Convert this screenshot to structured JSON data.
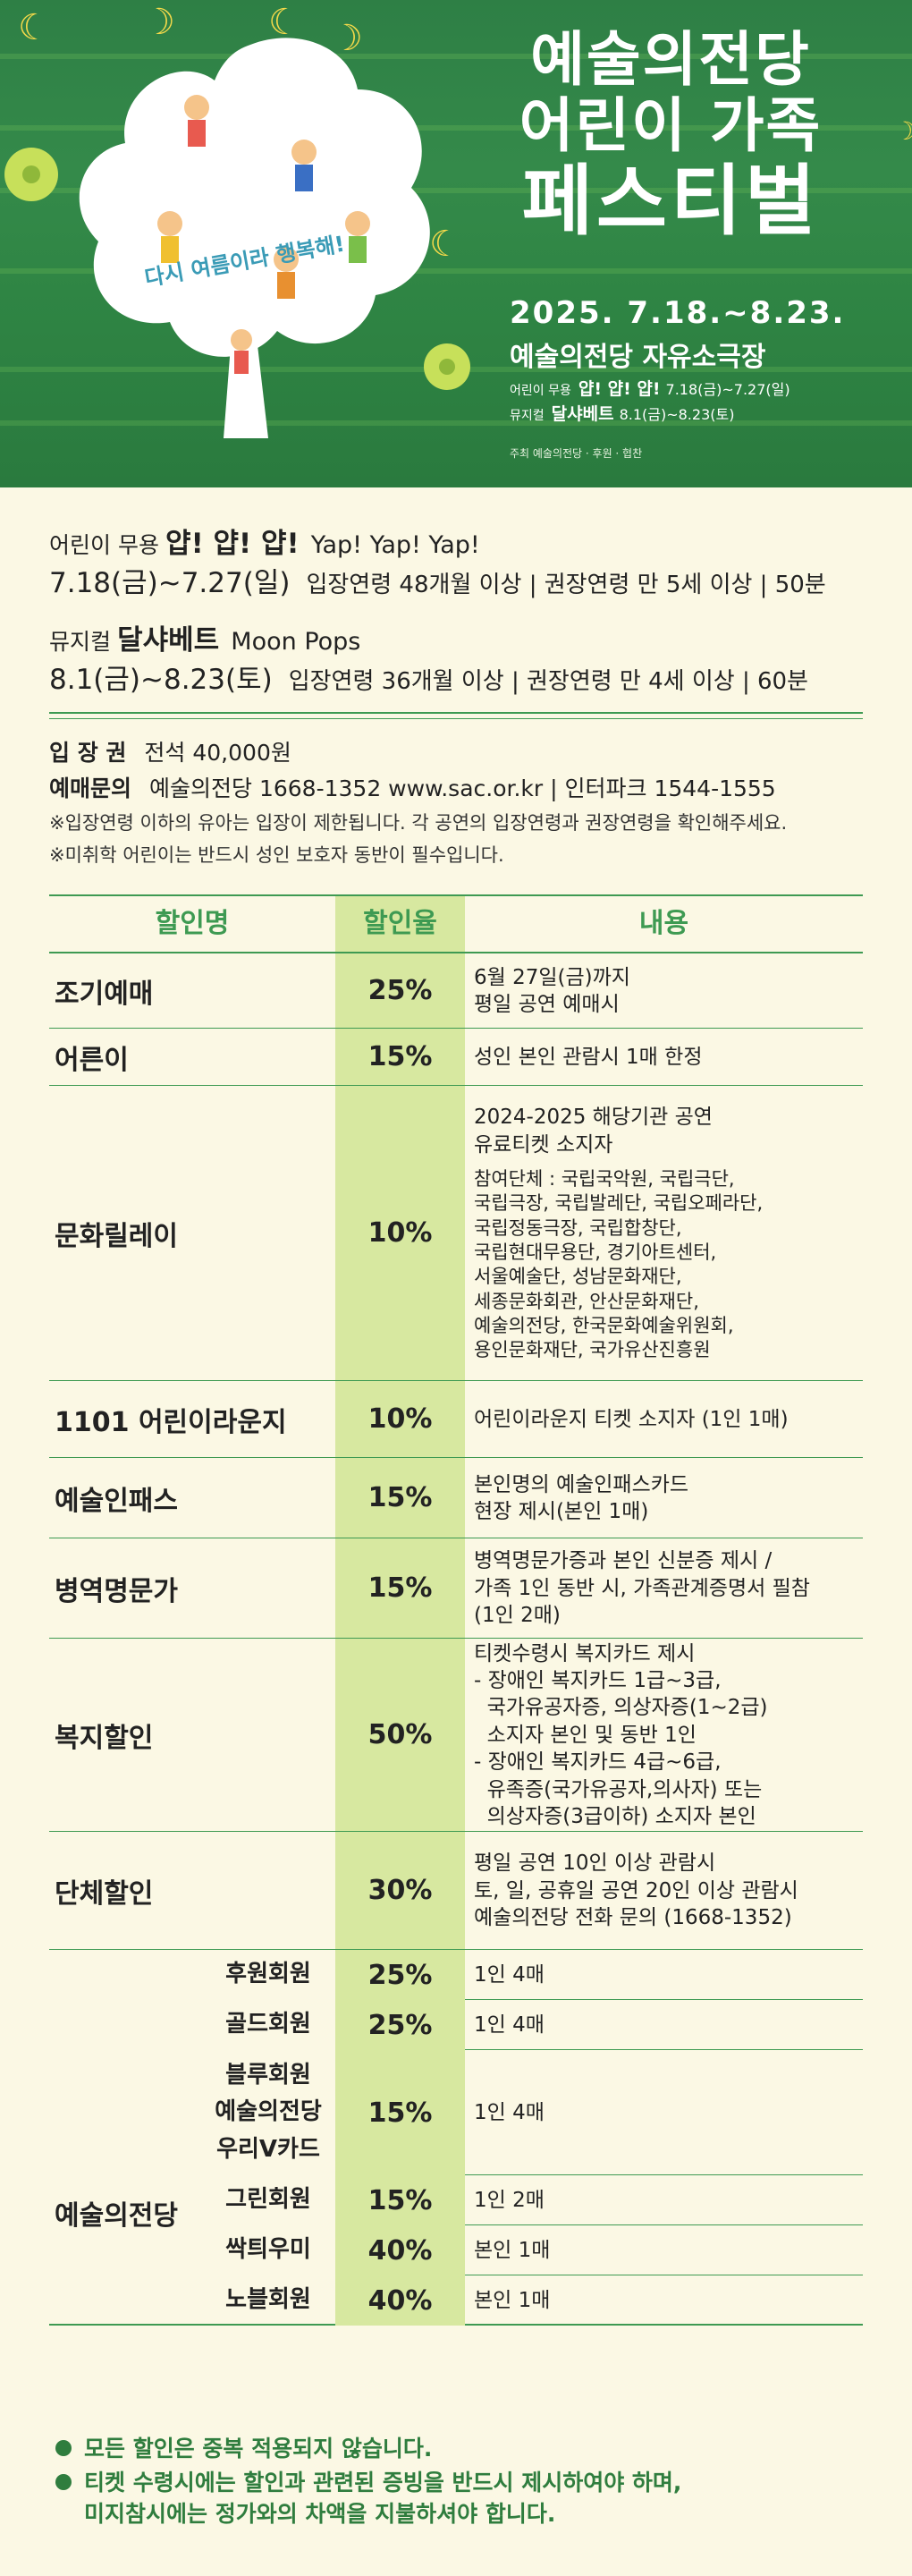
{
  "hero": {
    "title_line1": "예술의전당",
    "title_line2": "어린이 가족",
    "title_line3": "페스티벌",
    "tagline": "다시 여름이라 행복해!",
    "date": "2025. 7.18.~8.23.",
    "venue": "예술의전당 자유소극장",
    "line1_label": "어린이 무용",
    "line1_title": "얍! 얍! 얍!",
    "line1_date": "7.18(금)~7.27(일)",
    "line2_label": "뮤지컬",
    "line2_title": "달샤베트",
    "line2_date": "8.1(금)~8.23(토)",
    "credit": "주최 예술의전당 · 후원 · 협찬"
  },
  "show1": {
    "kind": "어린이 무용",
    "name_ko": "얍! 얍! 얍!",
    "name_en": "Yap! Yap! Yap!",
    "dates": "7.18(금)~7.27(일)",
    "info": "입장연령 48개월 이상 | 권장연령 만 5세 이상 | 50분"
  },
  "show2": {
    "kind": "뮤지컬",
    "name_ko": "달샤베트",
    "name_en": "Moon Pops",
    "dates": "8.1(금)~8.23(토)",
    "info": "입장연령 36개월 이상 | 권장연령 만 4세 이상 | 60분"
  },
  "ticket": {
    "price_label": "입 장 권",
    "price": "전석 40,000원",
    "inquiry_label": "예매문의",
    "inquiry": "예술의전당 1668-1352 www.sac.or.kr | 인터파크 1544-1555",
    "note1": "※입장연령 이하의 유아는 입장이 제한됩니다. 각 공연의 입장연령과 권장연령을 확인해주세요.",
    "note2": "※미취학 어린이는 반드시 성인 보호자 동반이 필수입니다."
  },
  "table": {
    "headers": [
      "할인명",
      "할인율",
      "내용"
    ],
    "rows": [
      {
        "name": "조기예매",
        "rate": "25%",
        "desc": [
          "6월 27일(금)까지",
          "평일 공연 예매시"
        ]
      },
      {
        "name": "어른이",
        "rate": "15%",
        "desc": [
          "성인 본인 관람시 1매 한정"
        ]
      },
      {
        "name": "문화릴레이",
        "rate": "10%",
        "desc": [
          "2024-2025 해당기관 공연",
          "유료티켓 소지자"
        ],
        "sub": [
          "참여단체 : 국립국악원, 국립극단,",
          "국립극장, 국립발레단, 국립오페라단,",
          "국립정동극장, 국립합창단,",
          "국립현대무용단, 경기아트센터,",
          "서울예술단, 성남문화재단,",
          "세종문화회관, 안산문화재단,",
          "예술의전당, 한국문화예술위원회,",
          "용인문화재단, 국가유산진흥원"
        ]
      },
      {
        "name": "1101 어린이라운지",
        "rate": "10%",
        "desc": [
          "어린이라운지 티켓 소지자 (1인 1매)"
        ]
      },
      {
        "name": "예술인패스",
        "rate": "15%",
        "desc": [
          "본인명의 예술인패스카드",
          "현장 제시(본인 1매)"
        ]
      },
      {
        "name": "병역명문가",
        "rate": "15%",
        "desc": [
          "병역명문가증과 본인 신분증 제시 /",
          "가족 1인 동반 시, 가족관계증명서 필참",
          "(1인 2매)"
        ]
      },
      {
        "name": "복지할인",
        "rate": "50%",
        "desc": [
          "티켓수령시 복지카드 제시",
          "- 장애인 복지카드 1급~3급,",
          "  국가유공자증, 의상자증(1~2급)",
          "  소지자 본인 및 동반 1인",
          "- 장애인 복지카드 4급~6급,",
          "  유족증(국가유공자,의사자) 또는",
          "  의상자증(3급이하) 소지자 본인"
        ]
      },
      {
        "name": "단체할인",
        "rate": "30%",
        "desc": [
          "평일 공연 10인 이상 관람시",
          "토, 일, 공휴일 공연 20인 이상 관람시",
          "예술의전당 전화 문의 (1668-1352)"
        ]
      }
    ],
    "member_group": "예술의전당",
    "members": [
      {
        "name": [
          "후원회원"
        ],
        "rate": "25%",
        "desc": "1인 4매"
      },
      {
        "name": [
          "골드회원"
        ],
        "rate": "25%",
        "desc": "1인 4매"
      },
      {
        "name": [
          "블루회원",
          "예술의전당",
          "우리V카드"
        ],
        "rate": "15%",
        "desc": "1인 4매"
      },
      {
        "name": [
          "그린회원"
        ],
        "rate": "15%",
        "desc": "1인 2매"
      },
      {
        "name": [
          "싹틔우미"
        ],
        "rate": "40%",
        "desc": "본인 1매"
      },
      {
        "name": [
          "노블회원"
        ],
        "rate": "40%",
        "desc": "본인 1매"
      }
    ]
  },
  "notes": {
    "bullet1": "모든 할인은 중복 적용되지 않습니다.",
    "bullet2_line1": "티켓 수령시에는 할인과 관련된 증빙을 반드시 제시하여야 하며,",
    "bullet2_line2": "미지참시에는 정가와의 차액을 지불하셔야 합니다."
  },
  "colors": {
    "accent": "#3e9a52",
    "rate_bg": "#d7e8a0",
    "hero_bg": "#348a4a",
    "moon": "#f4d94a"
  }
}
